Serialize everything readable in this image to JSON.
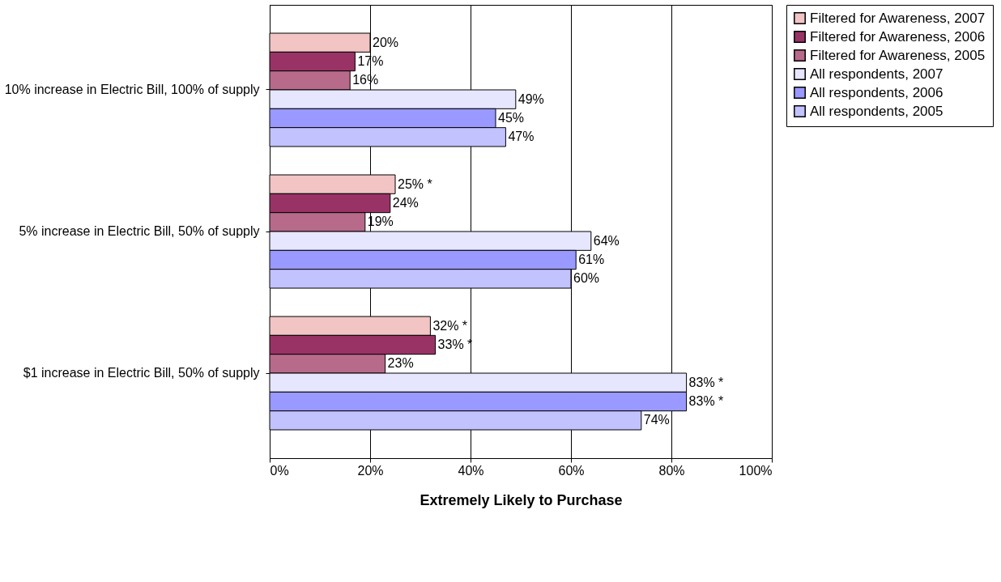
{
  "chart_data": {
    "type": "bar",
    "orientation": "horizontal",
    "xlabel": "Extremely Likely to Purchase",
    "categories": [
      "10% increase in Electric Bill, 100% of supply",
      "5% increase in Electric Bill, 50% of supply",
      "$1 increase in Electric Bill, 50% of supply"
    ],
    "series": [
      {
        "name": "Filtered for Awareness, 2007",
        "color": "#f2c4c4",
        "values": [
          20,
          25,
          32
        ],
        "value_labels": [
          "20%",
          "25% *",
          "32% *"
        ]
      },
      {
        "name": "Filtered for Awareness, 2006",
        "color": "#993366",
        "values": [
          17,
          24,
          33
        ],
        "value_labels": [
          "17%",
          "24%",
          "33% *"
        ]
      },
      {
        "name": "Filtered for Awareness, 2005",
        "color": "#b86a8a",
        "values": [
          16,
          19,
          23
        ],
        "value_labels": [
          "16%",
          "19%",
          "23%"
        ]
      },
      {
        "name": "All respondents, 2007",
        "color": "#e6e6ff",
        "values": [
          49,
          64,
          83
        ],
        "value_labels": [
          "49%",
          "64%",
          "83% *"
        ]
      },
      {
        "name": "All respondents, 2006",
        "color": "#9999ff",
        "values": [
          45,
          61,
          83
        ],
        "value_labels": [
          "45%",
          "61%",
          "83% *"
        ]
      },
      {
        "name": "All respondents, 2005",
        "color": "#c2c2ff",
        "values": [
          47,
          60,
          74
        ],
        "value_labels": [
          "47%",
          "60%",
          "74%"
        ]
      }
    ],
    "xlim": [
      0,
      100
    ],
    "xticks": [
      {
        "value": 0,
        "label": "0%"
      },
      {
        "value": 20,
        "label": "20%"
      },
      {
        "value": 40,
        "label": "40%"
      },
      {
        "value": 60,
        "label": "60%"
      },
      {
        "value": 80,
        "label": "80%"
      },
      {
        "value": 100,
        "label": "100%"
      }
    ],
    "grid": "x",
    "legend": "right"
  }
}
